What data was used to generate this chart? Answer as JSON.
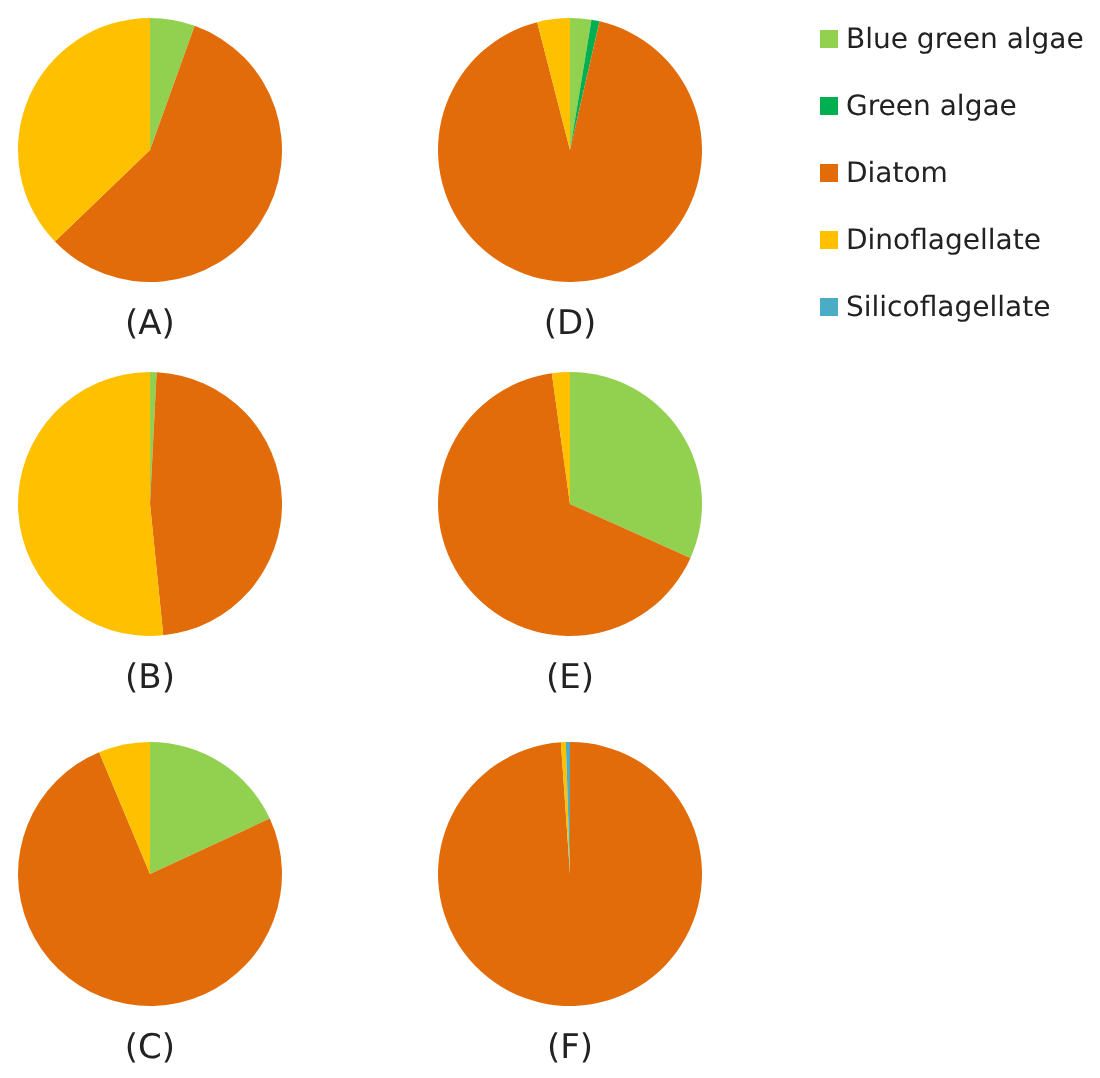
{
  "chart_data": [
    {
      "type": "pie",
      "title": "(A)",
      "categories": [
        null,
        null,
        null,
        null,
        null
      ],
      "values": [
        5.5,
        0,
        57.3,
        37.2,
        0
      ],
      "colors": [
        "#92d050",
        "#00b050",
        "#e36c0a",
        "#ffc000",
        "#4bacc6"
      ]
    },
    {
      "type": "pie",
      "title": "(D)",
      "categories": [
        "Blue green algae",
        "Green algae",
        "Diatom",
        "Dinoflagellate",
        "Silicoflagellate"
      ],
      "values": [
        2.6,
        1.0,
        92.4,
        4.0,
        0
      ],
      "colors": [
        "#92d050",
        "#00b050",
        "#e36c0a",
        "#ffc000",
        "#4bacc6"
      ],
      "legend": "right"
    },
    {
      "type": "pie",
      "title": "(B)",
      "categories": [
        null,
        null,
        null,
        null,
        null
      ],
      "values": [
        0.8,
        0,
        47.6,
        51.6,
        0
      ],
      "colors": [
        "#92d050",
        "#00b050",
        "#e36c0a",
        "#ffc000",
        "#4bacc6"
      ]
    },
    {
      "type": "pie",
      "title": "(E)",
      "categories": [
        null,
        null,
        null,
        null,
        null
      ],
      "values": [
        31.7,
        0,
        66.1,
        2.2,
        0
      ],
      "colors": [
        "#92d050",
        "#00b050",
        "#e36c0a",
        "#ffc000",
        "#4bacc6"
      ]
    },
    {
      "type": "pie",
      "title": "(C)",
      "categories": [
        null,
        null,
        null,
        null,
        null
      ],
      "values": [
        18.1,
        0,
        75.6,
        6.3,
        0
      ],
      "colors": [
        "#92d050",
        "#00b050",
        "#e36c0a",
        "#ffc000",
        "#4bacc6"
      ]
    },
    {
      "type": "pie",
      "title": "(F)",
      "categories": [
        null,
        null,
        null,
        null,
        null
      ],
      "values": [
        0,
        0,
        98.9,
        0.6,
        0.5
      ],
      "colors": [
        "#92d050",
        "#00b050",
        "#e36c0a",
        "#ffc000",
        "#4bacc6"
      ]
    }
  ]
}
